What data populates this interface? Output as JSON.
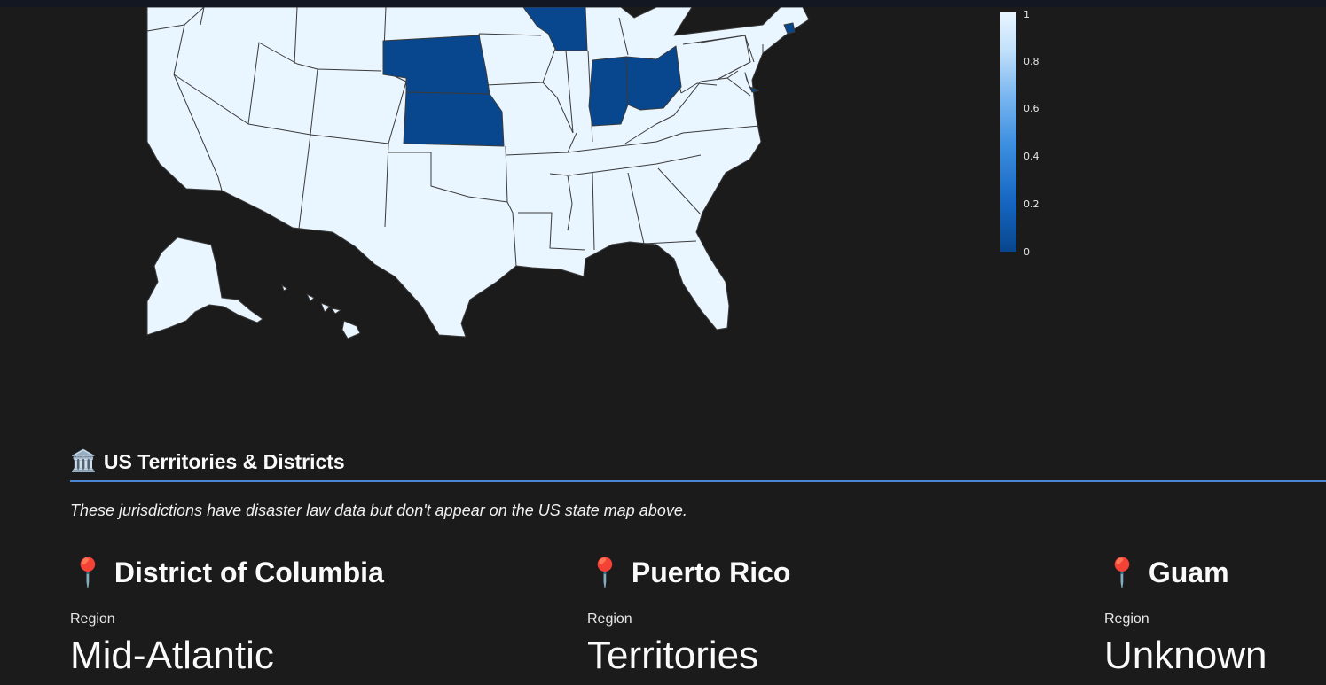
{
  "map": {
    "colors": {
      "low": "#08468d",
      "high": "#e9f5ff",
      "border": "#3a3a3a",
      "background": "#1b1b1b"
    },
    "colorbar": {
      "ticks": [
        "1",
        "0.8",
        "0.6",
        "0.4",
        "0.2",
        "0"
      ]
    }
  },
  "territories": {
    "header_icon": "🏛️",
    "header": "US Territories & Districts",
    "caption": "These jurisdictions have disaster law data but don't appear on the US state map above.",
    "cards": [
      {
        "icon": "📍",
        "name": "District of Columbia",
        "label": "Region",
        "value": "Mid-Atlantic"
      },
      {
        "icon": "📍",
        "name": "Puerto Rico",
        "label": "Region",
        "value": "Territories"
      },
      {
        "icon": "📍",
        "name": "Guam",
        "label": "Region",
        "value": "Unknown"
      }
    ]
  }
}
